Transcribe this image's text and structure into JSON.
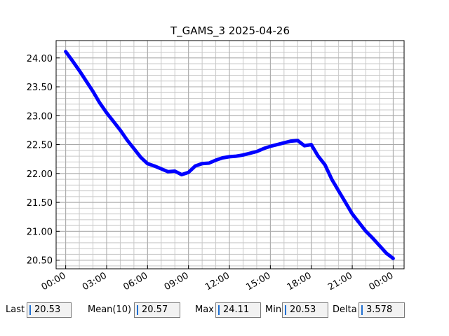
{
  "chart_data": {
    "type": "line",
    "title": "T_GAMS_3 2025-04-26",
    "xlabel": "",
    "ylabel": "",
    "x_ticks": [
      "00:00",
      "03:00",
      "06:00",
      "09:00",
      "12:00",
      "15:00",
      "18:00",
      "21:00",
      "00:00"
    ],
    "y_ticks": [
      "20.50",
      "21.00",
      "21.50",
      "22.00",
      "22.50",
      "23.00",
      "23.50",
      "24.00"
    ],
    "xlim_hours": [
      -0.7,
      24.8
    ],
    "ylim": [
      20.35,
      24.3
    ],
    "grid": true,
    "minor_grid": true,
    "series": [
      {
        "color": "#0000ff",
        "x_hours": [
          0,
          0.5,
          1,
          1.5,
          2,
          2.5,
          3,
          3.5,
          4,
          4.5,
          5,
          5.5,
          6,
          6.5,
          7,
          7.5,
          8,
          8.5,
          9,
          9.5,
          10,
          10.5,
          11,
          11.5,
          12,
          12.5,
          13,
          13.5,
          14,
          14.5,
          15,
          15.5,
          16,
          16.5,
          17,
          17.5,
          18,
          18.5,
          19,
          19.5,
          20,
          20.5,
          21,
          21.5,
          22,
          22.5,
          23,
          23.5,
          24
        ],
        "values": [
          24.11,
          23.95,
          23.78,
          23.6,
          23.42,
          23.22,
          23.05,
          22.9,
          22.75,
          22.58,
          22.43,
          22.28,
          22.17,
          22.13,
          22.08,
          22.03,
          22.04,
          21.98,
          22.02,
          22.13,
          22.17,
          22.18,
          22.23,
          22.27,
          22.29,
          22.3,
          22.32,
          22.35,
          22.38,
          22.43,
          22.47,
          22.5,
          22.53,
          22.56,
          22.57,
          22.48,
          22.5,
          22.3,
          22.15,
          21.9,
          21.7,
          21.5,
          21.3,
          21.15,
          21.0,
          20.88,
          20.75,
          20.62,
          20.53
        ]
      }
    ]
  },
  "stats": [
    {
      "label": "Last",
      "value": "20.53"
    },
    {
      "label": "Mean(10)",
      "value": "20.57"
    },
    {
      "label": "Max",
      "value": "24.11"
    },
    {
      "label": "Min",
      "value": "20.53"
    },
    {
      "label": "Delta",
      "value": "3.578"
    }
  ]
}
